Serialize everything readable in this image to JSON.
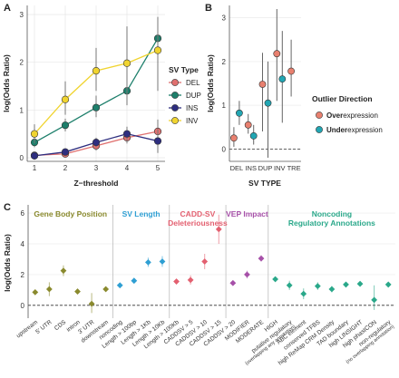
{
  "panels": {
    "a": "A",
    "b": "B",
    "c": "C"
  },
  "chart_data": [
    {
      "panel": "A",
      "type": "line",
      "xlabel": "Z−threshold",
      "ylabel": "log(Odds Ratio)",
      "xlim": [
        1,
        5
      ],
      "ylim": [
        0,
        3
      ],
      "x_ticks": [
        1,
        2,
        3,
        4,
        5
      ],
      "y_ticks": [
        0,
        1,
        2,
        3
      ],
      "legend_title": "SV Type",
      "legend_position": "right",
      "grid": true,
      "series": [
        {
          "name": "DEL",
          "color": "#e0706f",
          "x": [
            1,
            2,
            3,
            4,
            5
          ],
          "y": [
            0.05,
            0.08,
            0.25,
            0.42,
            0.55
          ],
          "err_low": [
            0.0,
            0.02,
            0.15,
            0.3,
            0.35
          ],
          "err_high": [
            0.1,
            0.14,
            0.35,
            0.55,
            0.8
          ]
        },
        {
          "name": "DUP",
          "color": "#1d7f6b",
          "x": [
            1,
            2,
            3,
            4,
            5
          ],
          "y": [
            0.32,
            0.68,
            1.05,
            1.4,
            2.5
          ],
          "err_low": [
            0.22,
            0.55,
            0.85,
            1.1,
            1.95
          ],
          "err_high": [
            0.42,
            0.82,
            1.3,
            1.7,
            2.95
          ]
        },
        {
          "name": "INS",
          "color": "#2e2e7f",
          "x": [
            1,
            2,
            3,
            4,
            5
          ],
          "y": [
            0.04,
            0.12,
            0.32,
            0.5,
            0.35
          ],
          "err_low": [
            0.0,
            0.05,
            0.22,
            0.35,
            0.1
          ],
          "err_high": [
            0.08,
            0.2,
            0.42,
            0.65,
            0.6
          ]
        },
        {
          "name": "INV",
          "color": "#f0d430",
          "x": [
            1,
            2,
            3,
            4,
            5
          ],
          "y": [
            0.5,
            1.22,
            1.82,
            1.98,
            2.25
          ],
          "err_low": [
            0.3,
            0.9,
            1.4,
            1.2,
            1.4
          ],
          "err_high": [
            0.7,
            1.6,
            2.3,
            2.75,
            2.8
          ]
        }
      ]
    },
    {
      "panel": "B",
      "type": "scatter",
      "xlabel": "SV TYPE",
      "ylabel": "log(Odds Ratio)",
      "ylim": [
        -0.2,
        3.2
      ],
      "y_ticks": [
        0,
        1,
        2,
        3
      ],
      "categories": [
        "DEL",
        "INS",
        "DUP",
        "INV",
        "TRE"
      ],
      "reference_line": 0,
      "legend_title": "Outlier Direction",
      "legend_position": "right",
      "series": [
        {
          "name": "Overexpression",
          "name_bold": "Over",
          "name_rest": "expression",
          "color": "#e8806f",
          "points": [
            {
              "category": "DEL",
              "y": 0.25,
              "low": 0.05,
              "high": 0.5
            },
            {
              "category": "INS",
              "y": 0.55,
              "low": 0.35,
              "high": 0.8
            },
            {
              "category": "DUP",
              "y": 1.48,
              "low": 0.4,
              "high": 2.2
            },
            {
              "category": "INV",
              "y": 2.18,
              "low": 1.1,
              "high": 3.2
            },
            {
              "category": "TRE",
              "y": 1.78,
              "low": 1.2,
              "high": 2.5
            }
          ]
        },
        {
          "name": "Underexpression",
          "name_bold": "Under",
          "name_rest": "expression",
          "color": "#22a6b3",
          "points": [
            {
              "category": "DEL",
              "y": 0.82,
              "low": 0.55,
              "high": 1.1
            },
            {
              "category": "INS",
              "y": 0.3,
              "low": 0.1,
              "high": 0.55
            },
            {
              "category": "DUP",
              "y": 1.05,
              "low": -0.2,
              "high": 2.0
            },
            {
              "category": "INV",
              "y": 1.6,
              "low": 0.6,
              "high": 2.7
            }
          ]
        }
      ]
    },
    {
      "panel": "C",
      "type": "scatter",
      "ylabel": "log(Odds Ratio)",
      "ylim": [
        -0.6,
        6.3
      ],
      "y_ticks": [
        0,
        2,
        4,
        6
      ],
      "reference_line": 0,
      "groups": [
        {
          "title": [
            "Gene Body Position"
          ],
          "color": "#8a8a2e",
          "items": [
            {
              "label": [
                "upstream"
              ],
              "y": 0.85,
              "low": 0.7,
              "high": 1.0
            },
            {
              "label": [
                "5' UTR"
              ],
              "y": 1.05,
              "low": 0.6,
              "high": 1.5
            },
            {
              "label": [
                "CDS"
              ],
              "y": 2.25,
              "low": 1.9,
              "high": 2.6
            },
            {
              "label": [
                "intron"
              ],
              "y": 0.9,
              "low": 0.8,
              "high": 1.0
            },
            {
              "label": [
                "3' UTR"
              ],
              "y": 0.1,
              "low": -0.5,
              "high": 0.8
            },
            {
              "label": [
                "downstream"
              ],
              "y": 1.05,
              "low": 0.9,
              "high": 1.2
            }
          ]
        },
        {
          "title": [
            "SV Length"
          ],
          "color": "#2f9fd3",
          "items": [
            {
              "label": [
                "noncoding"
              ],
              "y": 1.3,
              "low": 1.2,
              "high": 1.4
            },
            {
              "label": [
                "Length > 100bp"
              ],
              "y": 1.6,
              "low": 1.45,
              "high": 1.75
            },
            {
              "label": [
                "Length > 1Kb"
              ],
              "y": 2.8,
              "low": 2.5,
              "high": 3.1
            },
            {
              "label": [
                "Length > 10Kb"
              ],
              "y": 2.85,
              "low": 2.5,
              "high": 3.2
            }
          ]
        },
        {
          "title": [
            "CADD-SV",
            "Deleteriousness"
          ],
          "color": "#e36070",
          "items": [
            {
              "label": [
                "Length > 100Kb"
              ],
              "y": 1.55,
              "low": 1.4,
              "high": 1.7
            },
            {
              "label": [
                "CADDSV > 5"
              ],
              "y": 1.65,
              "low": 1.35,
              "high": 1.95
            },
            {
              "label": [
                "CADDSV > 10"
              ],
              "y": 2.85,
              "low": 2.35,
              "high": 3.35
            },
            {
              "label": [
                "CADDSV > 15"
              ],
              "y": 4.95,
              "low": 4.0,
              "high": 5.9
            }
          ]
        },
        {
          "title": [
            "VEP Impact"
          ],
          "color": "#a650a8",
          "items": [
            {
              "label": [
                "CADDSV > 20"
              ],
              "y": 1.45,
              "low": 1.35,
              "high": 1.55
            },
            {
              "label": [
                "MODIFIER"
              ],
              "y": 2.0,
              "low": 1.75,
              "high": 2.25
            },
            {
              "label": [
                "MODERATE"
              ],
              "y": 3.05,
              "low": 2.85,
              "high": 3.25
            }
          ]
        },
        {
          "title": [
            "Noncoding",
            "Regulatory Annotations"
          ],
          "color": "#2aa88a",
          "items": [
            {
              "label": [
                "HIGH"
              ],
              "y": 1.7,
              "low": 1.6,
              "high": 1.8
            },
            {
              "label": [
                "putative regulatory",
                "(overlapping any annotation)"
              ],
              "y": 1.3,
              "low": 1.0,
              "high": 1.6
            },
            {
              "label": [
                "ABC element"
              ],
              "y": 0.75,
              "low": 0.4,
              "high": 1.1
            },
            {
              "label": [
                "conserved TFBS"
              ],
              "y": 1.25,
              "low": 1.0,
              "high": 1.5
            },
            {
              "label": [
                "high ReMap CRM Density"
              ],
              "y": 1.05,
              "low": 0.85,
              "high": 1.25
            },
            {
              "label": [
                "TAD boundary"
              ],
              "y": 1.35,
              "low": 1.25,
              "high": 1.45
            },
            {
              "label": [
                "high LINSIGHT"
              ],
              "y": 1.4,
              "low": 1.25,
              "high": 1.55
            },
            {
              "label": [
                "high phastCON"
              ],
              "y": 0.35,
              "low": -0.3,
              "high": 1.3
            },
            {
              "label": [
                "non-regulatory",
                "(no overlapping annotation)"
              ],
              "y": 1.35,
              "low": 1.2,
              "high": 1.5
            }
          ]
        }
      ]
    }
  ]
}
